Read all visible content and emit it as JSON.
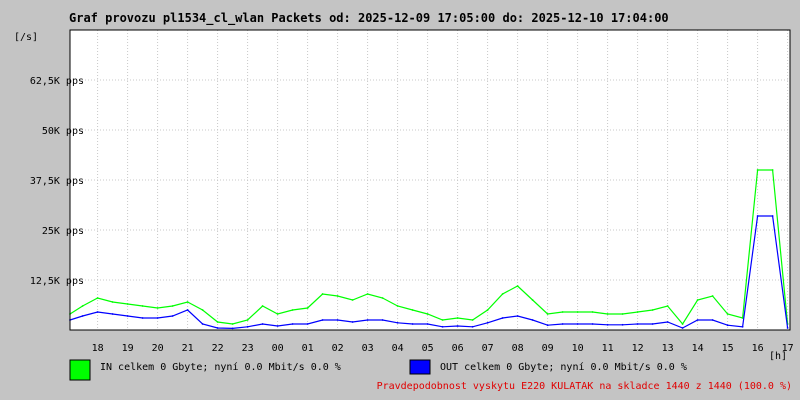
{
  "chart_data": {
    "type": "area",
    "title": "Graf provozu pl1534_cl_wlan Packets od: 2025-12-09 17:05:00 do: 2025-12-10 17:04:00",
    "y_unit": "[/s]",
    "x_unit": "[h]",
    "ylim": [
      0,
      75000
    ],
    "grid": true,
    "x_ticks": [
      "18",
      "19",
      "20",
      "21",
      "22",
      "23",
      "00",
      "01",
      "02",
      "03",
      "04",
      "05",
      "06",
      "07",
      "08",
      "09",
      "10",
      "11",
      "12",
      "13",
      "14",
      "15",
      "16",
      "17"
    ],
    "y_ticks": [
      {
        "value": 12500,
        "label": "12,5K pps"
      },
      {
        "value": 25000,
        "label": "25K pps"
      },
      {
        "value": 37500,
        "label": "37,5K pps"
      },
      {
        "value": 50000,
        "label": "50K pps"
      },
      {
        "value": 62500,
        "label": "62,5K pps"
      }
    ],
    "hours": [
      17.08,
      17.5,
      18,
      18.5,
      19,
      19.5,
      20,
      20.5,
      21,
      21.5,
      22,
      22.5,
      23,
      23.5,
      0,
      0.5,
      1,
      1.5,
      2,
      2.5,
      3,
      3.5,
      4,
      4.5,
      5,
      5.5,
      6,
      6.5,
      7,
      7.5,
      8,
      8.5,
      9,
      9.5,
      10,
      10.5,
      11,
      11.5,
      12,
      12.5,
      13,
      13.5,
      14,
      14.5,
      15,
      15.5,
      16,
      16.5,
      17
    ],
    "series": [
      {
        "name": "IN",
        "color": "#00ff00",
        "values": [
          4000,
          6000,
          8000,
          7000,
          6500,
          6000,
          5500,
          6000,
          7000,
          5000,
          2000,
          1500,
          2500,
          6000,
          4000,
          5000,
          5500,
          9000,
          8500,
          7500,
          9000,
          8000,
          6000,
          5000,
          4000,
          2500,
          3000,
          2500,
          5000,
          9000,
          11000,
          7500,
          4000,
          4500,
          4500,
          4500,
          4000,
          4000,
          4500,
          5000,
          6000,
          1500,
          7500,
          8500,
          4000,
          3000,
          40000,
          40000,
          1500
        ]
      },
      {
        "name": "OUT",
        "color": "#0000ff",
        "values": [
          2500,
          3500,
          4500,
          4000,
          3500,
          3000,
          3000,
          3500,
          5000,
          1500,
          500,
          400,
          800,
          1500,
          1000,
          1500,
          1500,
          2500,
          2500,
          2000,
          2500,
          2500,
          1800,
          1500,
          1500,
          800,
          1000,
          800,
          1800,
          3000,
          3500,
          2500,
          1200,
          1500,
          1500,
          1500,
          1300,
          1300,
          1500,
          1500,
          2000,
          500,
          2500,
          2500,
          1200,
          800,
          28500,
          28500,
          500
        ]
      }
    ],
    "legend": [
      {
        "swatch": "#00ff00",
        "text": "IN celkem 0 Gbyte; nyní   0.0 Mbit/s 0.0 %"
      },
      {
        "swatch": "#0000ff",
        "text": "OUT celkem 0 Gbyte; nyní   0.0 Mbit/s 0.0 %"
      }
    ],
    "footnote": "Pravdepodobnost vyskytu E220 KULATAK na skladce 1440 z 1440 (100.0 %)"
  }
}
